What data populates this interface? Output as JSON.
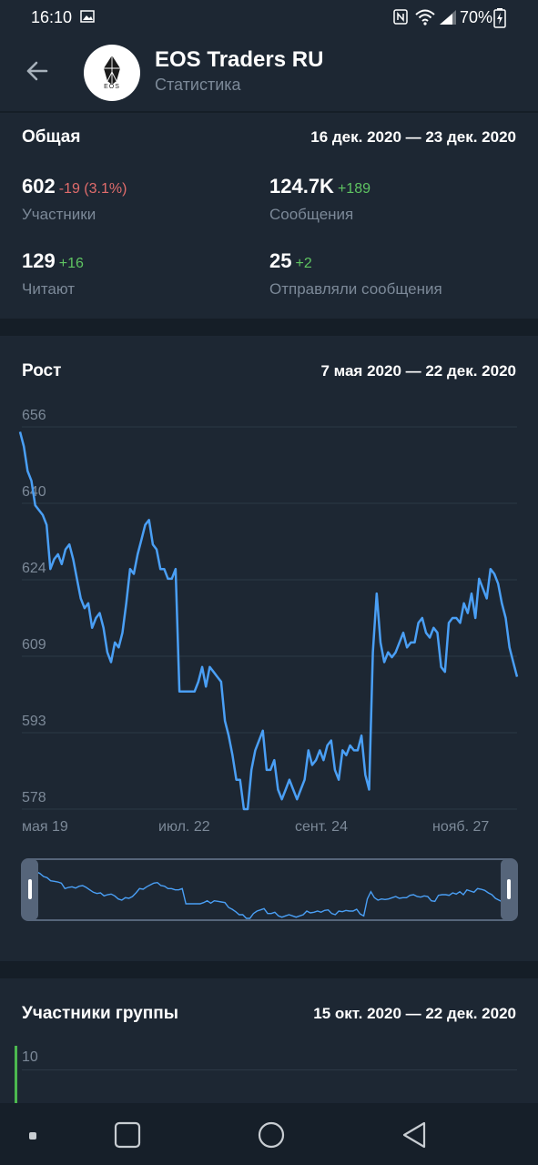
{
  "status_bar": {
    "time": "16:10",
    "battery": "70%"
  },
  "header": {
    "back_icon": "arrow-left-icon",
    "title": "EOS Traders RU",
    "subtitle": "Статистика",
    "avatar_text": "EOS"
  },
  "overview": {
    "title": "Общая",
    "range": "16 дек. 2020 — 23 дек. 2020",
    "stats": [
      {
        "value": "602",
        "delta": "-19 (3.1%)",
        "delta_sign": "negative",
        "label": "Участники"
      },
      {
        "value": "124.7K",
        "delta": "+189",
        "delta_sign": "positive",
        "label": "Сообщения"
      },
      {
        "value": "129",
        "delta": "+16",
        "delta_sign": "positive",
        "label": "Читают"
      },
      {
        "value": "25",
        "delta": "+2",
        "delta_sign": "positive",
        "label": "Отправляли сообщения"
      }
    ]
  },
  "growth": {
    "title": "Рост",
    "range": "7 мая 2020 — 22 дек. 2020"
  },
  "members": {
    "title": "Участники группы",
    "range": "15 окт. 2020 — 22 дек. 2020",
    "y_tick": "10"
  },
  "colors": {
    "line": "#4a9ff5",
    "negative": "#e06c6c",
    "positive": "#5fc462",
    "members_series": "#4cb84f"
  },
  "chart_data": {
    "type": "line",
    "title": "Рост",
    "y_ticks": [
      "656",
      "640",
      "624",
      "609",
      "593",
      "578"
    ],
    "ylim": [
      578,
      656
    ],
    "x_ticks": [
      "мая 19",
      "июл. 22",
      "сент. 24",
      "нояб. 27"
    ],
    "grid": true,
    "series": [
      {
        "values": [
          655,
          652,
          647,
          645,
          640,
          639,
          638,
          636,
          627,
          629,
          630,
          628,
          631,
          632,
          629,
          625,
          621,
          619,
          620,
          615,
          617,
          618,
          615,
          610,
          608,
          612,
          611,
          614,
          620,
          627,
          626,
          630,
          633,
          636,
          637,
          632,
          631,
          627,
          627,
          625,
          625,
          627,
          602,
          602,
          602,
          602,
          602,
          604,
          607,
          603,
          607,
          606,
          605,
          604,
          596,
          593,
          589,
          584,
          584,
          578,
          578,
          586,
          590,
          592,
          594,
          586,
          586,
          588,
          582,
          580,
          582,
          584,
          582,
          580,
          582,
          584,
          590,
          587,
          588,
          590,
          588,
          591,
          592,
          586,
          584,
          590,
          589,
          591,
          590,
          590,
          593,
          585,
          582,
          610,
          622,
          612,
          608,
          610,
          609,
          610,
          612,
          614,
          611,
          612,
          612,
          616,
          617,
          614,
          613,
          615,
          614,
          607,
          606,
          616,
          617,
          617,
          616,
          620,
          618,
          622,
          617,
          625,
          623,
          621,
          627,
          626,
          624,
          620,
          617,
          611,
          608,
          605
        ]
      }
    ],
    "navigator": {
      "type": "line",
      "series_ref": 0
    }
  }
}
